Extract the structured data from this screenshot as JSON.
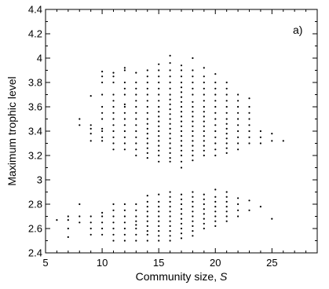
{
  "chart_data": {
    "type": "scatter",
    "title": "",
    "panel_label": "a)",
    "xlabel": "Community size, ",
    "xlabel_var": "S",
    "ylabel": "Maximum trophic level",
    "xlim": [
      5,
      29
    ],
    "ylim": [
      2.4,
      4.4
    ],
    "x_ticks": [
      "5",
      "10",
      "15",
      "20",
      "25"
    ],
    "y_ticks": [
      "2.4",
      "2.6",
      "2.8",
      "3",
      "3.2",
      "3.4",
      "3.6",
      "3.8",
      "4",
      "4.2",
      "4.4"
    ],
    "x_tick_values": [
      5,
      10,
      15,
      20,
      25
    ],
    "y_tick_values": [
      2.4,
      2.6,
      2.8,
      3.0,
      3.2,
      3.4,
      3.6,
      3.8,
      4.0,
      4.2,
      4.4
    ],
    "grid": false,
    "marker_color": "#000000",
    "upper_cluster": [
      {
        "x": 8,
        "y": [
          3.45,
          3.5
        ]
      },
      {
        "x": 9,
        "y": [
          3.32,
          3.38,
          3.42,
          3.45,
          3.69
        ]
      },
      {
        "x": 10,
        "y": [
          3.32,
          3.35,
          3.4,
          3.42,
          3.5,
          3.55,
          3.6,
          3.7,
          3.8,
          3.85,
          3.89
        ]
      },
      {
        "x": 11,
        "y": [
          3.25,
          3.3,
          3.35,
          3.4,
          3.45,
          3.5,
          3.55,
          3.6,
          3.65,
          3.7,
          3.8,
          3.85,
          3.88
        ]
      },
      {
        "x": 12,
        "y": [
          3.25,
          3.3,
          3.35,
          3.4,
          3.45,
          3.5,
          3.55,
          3.6,
          3.62,
          3.7,
          3.75,
          3.8,
          3.9,
          3.92
        ]
      },
      {
        "x": 13,
        "y": [
          3.2,
          3.25,
          3.3,
          3.35,
          3.4,
          3.45,
          3.5,
          3.55,
          3.6,
          3.65,
          3.7,
          3.75,
          3.8,
          3.88
        ]
      },
      {
        "x": 14,
        "y": [
          3.18,
          3.22,
          3.26,
          3.3,
          3.34,
          3.38,
          3.42,
          3.46,
          3.5,
          3.55,
          3.6,
          3.65,
          3.7,
          3.75,
          3.8,
          3.85,
          3.9
        ]
      },
      {
        "x": 15,
        "y": [
          3.15,
          3.2,
          3.24,
          3.28,
          3.32,
          3.36,
          3.4,
          3.44,
          3.48,
          3.52,
          3.56,
          3.6,
          3.65,
          3.7,
          3.75,
          3.8,
          3.85,
          3.9,
          3.95
        ]
      },
      {
        "x": 16,
        "y": [
          3.15,
          3.18,
          3.22,
          3.26,
          3.3,
          3.34,
          3.38,
          3.42,
          3.46,
          3.5,
          3.54,
          3.58,
          3.62,
          3.66,
          3.7,
          3.75,
          3.8,
          3.85,
          3.9,
          3.96,
          4.02
        ]
      },
      {
        "x": 17,
        "y": [
          3.1,
          3.15,
          3.2,
          3.24,
          3.28,
          3.32,
          3.36,
          3.4,
          3.44,
          3.48,
          3.52,
          3.56,
          3.6,
          3.64,
          3.68,
          3.72,
          3.76,
          3.8,
          3.85,
          3.9,
          3.94
        ]
      },
      {
        "x": 18,
        "y": [
          3.16,
          3.2,
          3.24,
          3.28,
          3.32,
          3.36,
          3.4,
          3.44,
          3.48,
          3.52,
          3.56,
          3.6,
          3.64,
          3.7,
          3.75,
          3.8,
          3.85,
          3.9,
          4.0
        ]
      },
      {
        "x": 19,
        "y": [
          3.2,
          3.24,
          3.28,
          3.32,
          3.36,
          3.4,
          3.44,
          3.48,
          3.52,
          3.56,
          3.6,
          3.65,
          3.7,
          3.75,
          3.8,
          3.85,
          3.92
        ]
      },
      {
        "x": 20,
        "y": [
          3.2,
          3.25,
          3.3,
          3.35,
          3.4,
          3.45,
          3.5,
          3.55,
          3.6,
          3.65,
          3.7,
          3.75,
          3.8,
          3.87
        ]
      },
      {
        "x": 21,
        "y": [
          3.22,
          3.26,
          3.3,
          3.34,
          3.38,
          3.42,
          3.46,
          3.5,
          3.55,
          3.6,
          3.65,
          3.7,
          3.75,
          3.8
        ]
      },
      {
        "x": 22,
        "y": [
          3.25,
          3.3,
          3.35,
          3.4,
          3.45,
          3.5,
          3.55,
          3.6,
          3.65,
          3.7
        ]
      },
      {
        "x": 23,
        "y": [
          3.3,
          3.35,
          3.4,
          3.45,
          3.5,
          3.55,
          3.6,
          3.67
        ]
      },
      {
        "x": 24,
        "y": [
          3.3,
          3.35,
          3.4
        ]
      },
      {
        "x": 25,
        "y": [
          3.32,
          3.38
        ]
      },
      {
        "x": 26,
        "y": [
          3.32
        ]
      }
    ],
    "lower_cluster": [
      {
        "x": 6,
        "y": [
          2.67
        ]
      },
      {
        "x": 7,
        "y": [
          2.53,
          2.6,
          2.67,
          2.7
        ]
      },
      {
        "x": 8,
        "y": [
          2.65,
          2.7,
          2.8
        ]
      },
      {
        "x": 9,
        "y": [
          2.55,
          2.6,
          2.65,
          2.7
        ]
      },
      {
        "x": 10,
        "y": [
          2.55,
          2.6,
          2.65,
          2.7,
          2.73
        ]
      },
      {
        "x": 11,
        "y": [
          2.5,
          2.55,
          2.6,
          2.65,
          2.7,
          2.75,
          2.8
        ]
      },
      {
        "x": 12,
        "y": [
          2.5,
          2.55,
          2.6,
          2.65,
          2.7,
          2.75,
          2.8
        ]
      },
      {
        "x": 13,
        "y": [
          2.5,
          2.55,
          2.6,
          2.63,
          2.66,
          2.7,
          2.75,
          2.8
        ]
      },
      {
        "x": 14,
        "y": [
          2.5,
          2.55,
          2.58,
          2.62,
          2.66,
          2.7,
          2.74,
          2.78,
          2.82,
          2.87
        ]
      },
      {
        "x": 15,
        "y": [
          2.5,
          2.54,
          2.58,
          2.62,
          2.66,
          2.7,
          2.74,
          2.78,
          2.82,
          2.88
        ]
      },
      {
        "x": 16,
        "y": [
          2.5,
          2.54,
          2.58,
          2.62,
          2.66,
          2.7,
          2.74,
          2.78,
          2.82,
          2.86,
          2.9
        ]
      },
      {
        "x": 17,
        "y": [
          2.52,
          2.56,
          2.6,
          2.64,
          2.68,
          2.72,
          2.76,
          2.8,
          2.84,
          2.88
        ]
      },
      {
        "x": 18,
        "y": [
          2.54,
          2.58,
          2.62,
          2.66,
          2.7,
          2.74,
          2.78,
          2.82,
          2.86,
          2.9
        ]
      },
      {
        "x": 19,
        "y": [
          2.6,
          2.64,
          2.68,
          2.72,
          2.76,
          2.8,
          2.84,
          2.88
        ]
      },
      {
        "x": 20,
        "y": [
          2.62,
          2.66,
          2.7,
          2.74,
          2.78,
          2.82,
          2.86,
          2.92
        ]
      },
      {
        "x": 21,
        "y": [
          2.66,
          2.7,
          2.74,
          2.78,
          2.82,
          2.86,
          2.9
        ]
      },
      {
        "x": 22,
        "y": [
          2.7,
          2.75,
          2.8,
          2.85
        ]
      },
      {
        "x": 23,
        "y": [
          2.75,
          2.83
        ]
      },
      {
        "x": 24,
        "y": [
          2.78
        ]
      },
      {
        "x": 25,
        "y": [
          2.68
        ]
      }
    ]
  }
}
